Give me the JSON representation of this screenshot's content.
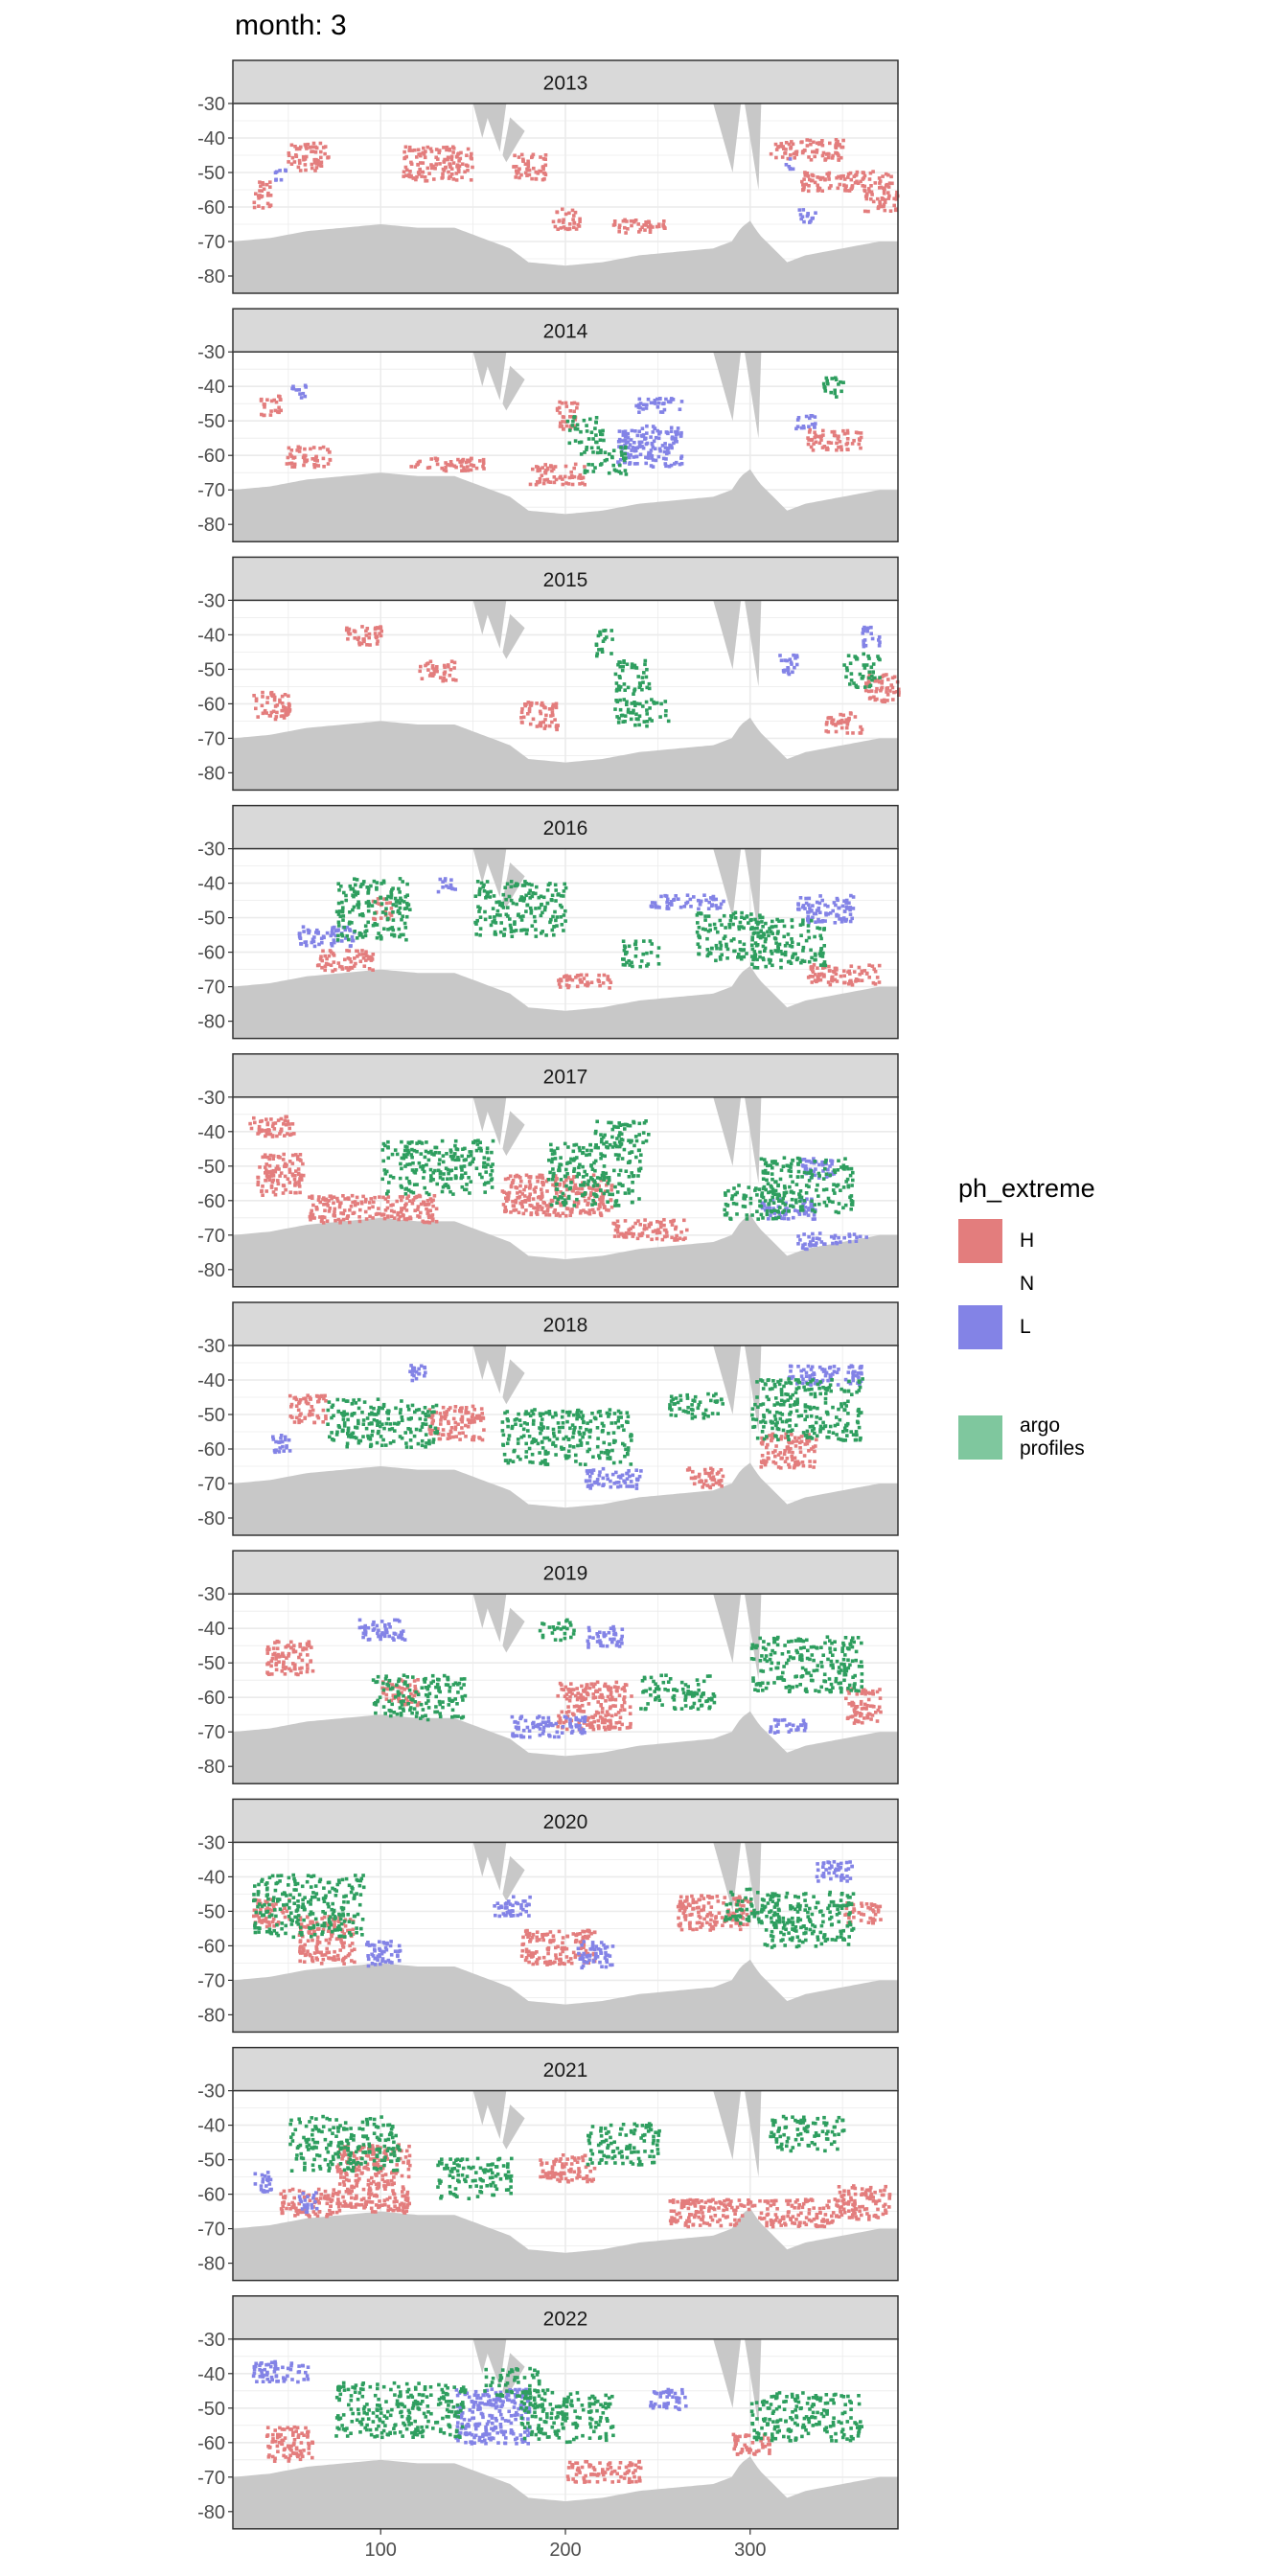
{
  "title": "month: 3",
  "chart_data": {
    "type": "heatmap",
    "title": "month: 3",
    "xlabel": "",
    "ylabel": "",
    "x_ticks": [
      100,
      200,
      300
    ],
    "y_ticks": [
      -30,
      -40,
      -50,
      -60,
      -70,
      -80
    ],
    "xlim": [
      20,
      380
    ],
    "ylim": [
      -85,
      -30
    ],
    "facet_labels": [
      "2013",
      "2014",
      "2015",
      "2016",
      "2017",
      "2018",
      "2019",
      "2020",
      "2021",
      "2022"
    ],
    "legend": {
      "title": "ph_extreme",
      "entries": [
        {
          "label": "H",
          "color": "#E37D7D"
        },
        {
          "label": "N",
          "color": null
        },
        {
          "label": "L",
          "color": "#8383E6"
        },
        {
          "label": "argo profiles",
          "color": "#7FC79E"
        }
      ]
    },
    "colors": {
      "H": "#E37D7D",
      "L": "#8383E6",
      "argo": "#2E9E5F",
      "land": "#C8C8C8",
      "strip": "#D9D9D9",
      "grid": "#EBEBEB"
    },
    "facets": [
      {
        "year": "2013",
        "H": [
          [
            60,
            -45,
            22,
            8
          ],
          [
            130,
            -47,
            38,
            10
          ],
          [
            35,
            -56,
            10,
            8
          ],
          [
            200,
            -63,
            15,
            6
          ],
          [
            330,
            -43,
            40,
            6
          ],
          [
            352,
            -52,
            50,
            6
          ],
          [
            370,
            -58,
            18,
            6
          ],
          [
            240,
            -65,
            30,
            4
          ],
          [
            180,
            -48,
            18,
            8
          ]
        ],
        "L": [
          [
            45,
            -50,
            6,
            4
          ],
          [
            330,
            -62,
            10,
            4
          ],
          [
            320,
            -47,
            6,
            3
          ]
        ],
        "A": []
      },
      {
        "year": "2014",
        "H": [
          [
            40,
            -45,
            12,
            6
          ],
          [
            60,
            -60,
            24,
            6
          ],
          [
            135,
            -62,
            40,
            4
          ],
          [
            195,
            -65,
            30,
            6
          ],
          [
            200,
            -48,
            12,
            8
          ],
          [
            345,
            -55,
            30,
            6
          ]
        ],
        "L": [
          [
            245,
            -57,
            35,
            12
          ],
          [
            250,
            -45,
            25,
            4
          ],
          [
            330,
            -50,
            12,
            4
          ],
          [
            55,
            -41,
            8,
            4
          ]
        ],
        "A": [
          [
            210,
            -52,
            20,
            8
          ],
          [
            220,
            -61,
            25,
            8
          ],
          [
            345,
            -40,
            14,
            6
          ]
        ]
      },
      {
        "year": "2015",
        "H": [
          [
            40,
            -60,
            20,
            8
          ],
          [
            90,
            -40,
            20,
            6
          ],
          [
            130,
            -50,
            20,
            6
          ],
          [
            185,
            -63,
            20,
            8
          ],
          [
            350,
            -65,
            20,
            6
          ],
          [
            370,
            -55,
            20,
            8
          ]
        ],
        "L": [
          [
            320,
            -48,
            10,
            6
          ],
          [
            365,
            -40,
            10,
            6
          ]
        ],
        "A": [
          [
            235,
            -52,
            20,
            10
          ],
          [
            240,
            -62,
            30,
            8
          ],
          [
            360,
            -50,
            20,
            10
          ],
          [
            220,
            -42,
            10,
            8
          ]
        ]
      },
      {
        "year": "2016",
        "H": [
          [
            80,
            -62,
            30,
            6
          ],
          [
            130,
            -70,
            40,
            4
          ],
          [
            210,
            -68,
            30,
            4
          ],
          [
            350,
            -66,
            40,
            6
          ],
          [
            100,
            -47,
            10,
            6
          ]
        ],
        "L": [
          [
            70,
            -55,
            30,
            6
          ],
          [
            265,
            -45,
            40,
            4
          ],
          [
            340,
            -47,
            30,
            8
          ],
          [
            135,
            -40,
            10,
            4
          ]
        ],
        "A": [
          [
            95,
            -47,
            40,
            18
          ],
          [
            175,
            -47,
            50,
            16
          ],
          [
            290,
            -55,
            40,
            14
          ],
          [
            320,
            -57,
            40,
            14
          ],
          [
            240,
            -60,
            20,
            8
          ]
        ]
      },
      {
        "year": "2017",
        "H": [
          [
            45,
            -52,
            25,
            12
          ],
          [
            95,
            -62,
            70,
            8
          ],
          [
            195,
            -58,
            60,
            12
          ],
          [
            245,
            -68,
            40,
            6
          ],
          [
            40,
            -38,
            25,
            6
          ]
        ],
        "L": [
          [
            320,
            -62,
            30,
            6
          ],
          [
            345,
            -72,
            40,
            6
          ],
          [
            335,
            -50,
            20,
            6
          ]
        ],
        "A": [
          [
            130,
            -50,
            60,
            16
          ],
          [
            215,
            -52,
            50,
            18
          ],
          [
            300,
            -60,
            30,
            10
          ],
          [
            330,
            -55,
            50,
            16
          ],
          [
            230,
            -40,
            30,
            8
          ]
        ]
      },
      {
        "year": "2018",
        "H": [
          [
            60,
            -48,
            20,
            8
          ],
          [
            140,
            -52,
            30,
            10
          ],
          [
            320,
            -60,
            30,
            10
          ],
          [
            275,
            -68,
            20,
            6
          ]
        ],
        "L": [
          [
            340,
            -38,
            40,
            6
          ],
          [
            225,
            -68,
            30,
            6
          ],
          [
            120,
            -38,
            10,
            6
          ],
          [
            45,
            -58,
            10,
            6
          ]
        ],
        "A": [
          [
            100,
            -52,
            60,
            14
          ],
          [
            200,
            -56,
            70,
            16
          ],
          [
            330,
            -48,
            60,
            18
          ],
          [
            270,
            -47,
            30,
            8
          ]
        ]
      },
      {
        "year": "2019",
        "H": [
          [
            50,
            -48,
            25,
            10
          ],
          [
            215,
            -62,
            40,
            14
          ],
          [
            360,
            -62,
            20,
            10
          ],
          [
            110,
            -58,
            20,
            8
          ]
        ],
        "L": [
          [
            100,
            -40,
            25,
            6
          ],
          [
            190,
            -68,
            40,
            6
          ],
          [
            320,
            -68,
            20,
            4
          ],
          [
            220,
            -42,
            20,
            6
          ]
        ],
        "A": [
          [
            120,
            -60,
            50,
            14
          ],
          [
            330,
            -50,
            60,
            16
          ],
          [
            260,
            -58,
            40,
            10
          ],
          [
            195,
            -40,
            20,
            6
          ]
        ]
      },
      {
        "year": "2020",
        "H": [
          [
            70,
            -58,
            30,
            14
          ],
          [
            195,
            -60,
            40,
            10
          ],
          [
            280,
            -50,
            40,
            10
          ],
          [
            40,
            -50,
            20,
            8
          ],
          [
            360,
            -50,
            20,
            6
          ]
        ],
        "L": [
          [
            100,
            -62,
            20,
            8
          ],
          [
            215,
            -62,
            20,
            8
          ],
          [
            170,
            -48,
            20,
            6
          ],
          [
            345,
            -38,
            20,
            6
          ]
        ],
        "A": [
          [
            60,
            -48,
            60,
            18
          ],
          [
            330,
            -52,
            50,
            16
          ],
          [
            300,
            -48,
            30,
            10
          ]
        ]
      },
      {
        "year": "2021",
        "H": [
          [
            95,
            -55,
            40,
            20
          ],
          [
            300,
            -65,
            90,
            8
          ],
          [
            360,
            -62,
            30,
            10
          ],
          [
            60,
            -62,
            30,
            8
          ],
          [
            200,
            -52,
            30,
            8
          ]
        ],
        "L": [
          [
            35,
            -56,
            10,
            6
          ],
          [
            60,
            -62,
            10,
            6
          ]
        ],
        "A": [
          [
            80,
            -45,
            60,
            16
          ],
          [
            150,
            -55,
            40,
            12
          ],
          [
            230,
            -45,
            40,
            12
          ],
          [
            330,
            -42,
            40,
            10
          ]
        ]
      },
      {
        "year": "2022",
        "H": [
          [
            50,
            -60,
            25,
            10
          ],
          [
            220,
            -68,
            40,
            6
          ],
          [
            300,
            -60,
            20,
            6
          ]
        ],
        "L": [
          [
            45,
            -39,
            30,
            6
          ],
          [
            160,
            -52,
            40,
            16
          ],
          [
            255,
            -47,
            20,
            6
          ]
        ],
        "A": [
          [
            110,
            -50,
            70,
            16
          ],
          [
            200,
            -52,
            50,
            16
          ],
          [
            330,
            -52,
            60,
            14
          ],
          [
            170,
            -42,
            30,
            8
          ]
        ]
      }
    ]
  }
}
